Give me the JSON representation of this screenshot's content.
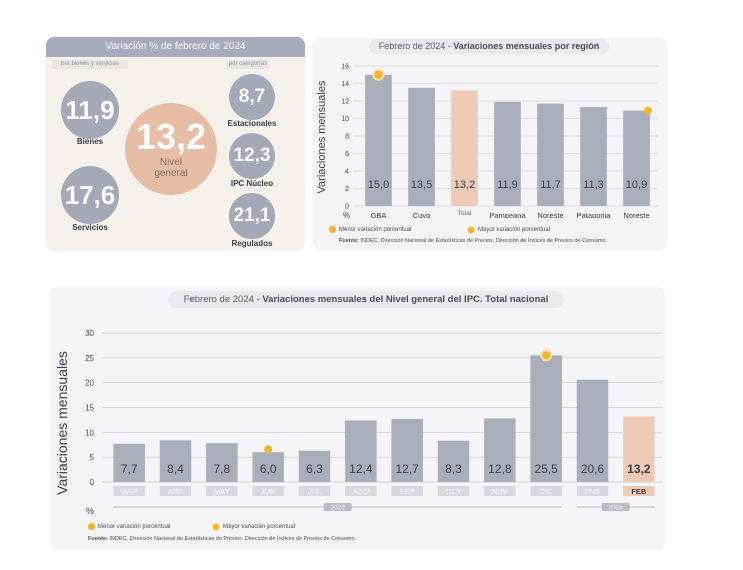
{
  "panel1": {
    "title": "Variación % de febrero de 2024",
    "left_subtitle": "por bienes y servicios",
    "right_subtitle": "por categorías",
    "center": {
      "value": "13,2",
      "label_line1": "Nivel",
      "label_line2": "general"
    },
    "left_items": [
      {
        "value": "11,9",
        "label": "Bienes"
      },
      {
        "value": "17,6",
        "label": "Servicios"
      }
    ],
    "right_items": [
      {
        "value": "8,7",
        "label": "Estacionales"
      },
      {
        "value": "12,3",
        "label": "IPC Núcleo"
      },
      {
        "value": "21,1",
        "label": "Regulados"
      }
    ]
  },
  "panel2": {
    "title_prefix": "Febrero de 2024 - ",
    "title_bold": "Variaciones mensuales por región",
    "legend_min": "Menor variación porcentual",
    "legend_max": "Mayor variación porcentual",
    "source_bold": "Fuente:",
    "source_text": " INDEC, Dirección Nacional de Estadísticas de Precios. Dirección de Índices de Precios de Consumo."
  },
  "panel3": {
    "title_prefix": "Febrero de 2024 - ",
    "title_bold": "Variaciones mensuales del Nivel general del IPC. Total nacional",
    "legend_min": "Menor variación porcentual",
    "legend_max": "Mayor variación porcentual",
    "source_bold": "Fuente:",
    "source_text": " INDEC, Dirección Nacional de Estadísticas de Precios. Dirección de Índices de Precios de Consumo.",
    "year_2023": "2023",
    "year_2024": "2024"
  },
  "colors": {
    "grey_bar": "#a9aebb",
    "highlight_bar": "#efcbb6",
    "marker": "#f2b52c",
    "grid": "#c8c9d1"
  },
  "chart_data": [
    {
      "type": "bar",
      "title": "Febrero de 2024 - Variaciones mensuales por región",
      "ylabel": "Variaciones mensuales",
      "yunit": "%",
      "ylim": [
        0,
        16
      ],
      "yticks": [
        0,
        2,
        4,
        6,
        8,
        10,
        12,
        14,
        16
      ],
      "categories": [
        "GBA",
        "Cuyo",
        "Total nacional",
        "Pampeana",
        "Noreste",
        "Patagonia",
        "Noreste"
      ],
      "values": [
        15.0,
        13.5,
        13.2,
        11.9,
        11.7,
        11.3,
        10.9
      ],
      "value_labels": [
        "15,0",
        "13,5",
        "13,2",
        "11,9",
        "11,7",
        "11,3",
        "10,9"
      ],
      "highlight_index": 2,
      "max_marker_index": 0,
      "min_marker_index": 6
    },
    {
      "type": "bar",
      "title": "Febrero de 2024 - Variaciones mensuales del Nivel general del IPC. Total nacional",
      "ylabel": "Variaciones mensuales",
      "yunit": "%",
      "ylim": [
        0,
        30
      ],
      "yticks": [
        0,
        5,
        10,
        15,
        20,
        25,
        30
      ],
      "categories": [
        "MAR",
        "ABR",
        "MAY",
        "JUN",
        "JUL",
        "AGO",
        "SEP",
        "OCT",
        "NOV",
        "DIC",
        "ENE",
        "FEB"
      ],
      "values": [
        7.7,
        8.4,
        7.8,
        6.0,
        6.3,
        12.4,
        12.7,
        8.3,
        12.8,
        25.5,
        20.6,
        13.2
      ],
      "value_labels": [
        "7,7",
        "8,4",
        "7,8",
        "6,0",
        "6,3",
        "12,4",
        "12,7",
        "8,3",
        "12,8",
        "25,5",
        "20,6",
        "13,2"
      ],
      "highlight_index": 11,
      "max_marker_index": 9,
      "min_marker_index": 3,
      "year_groups": [
        {
          "label": "2023",
          "from": 0,
          "to": 9
        },
        {
          "label": "2024",
          "from": 10,
          "to": 11
        }
      ]
    }
  ]
}
